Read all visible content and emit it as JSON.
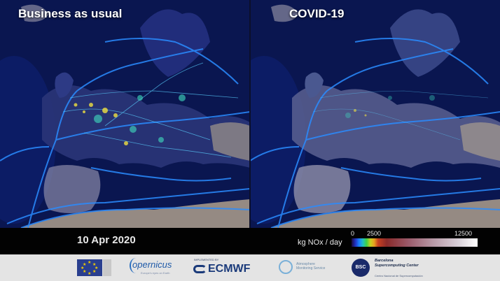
{
  "panels": {
    "left_title": "Business as usual",
    "right_title": "COVID-19"
  },
  "info": {
    "date": "10 Apr 2020",
    "unit": "kg NOx / day",
    "scale_min": "0",
    "scale_mid": "2500",
    "scale_max": "12500"
  },
  "logos": {
    "copernicus": "opernicus",
    "copernicus_sub": "Europe's eyes on Earth",
    "ecmwf_impl": "IMPLEMENTED BY",
    "ecmwf": "ECMWF",
    "cams": "Atmosphere Monitoring Service",
    "bsc_mark": "BSC",
    "bsc": "Barcelona Supercomputing Center",
    "bsc_sub": "Centro Nacional de Supercomputación"
  }
}
